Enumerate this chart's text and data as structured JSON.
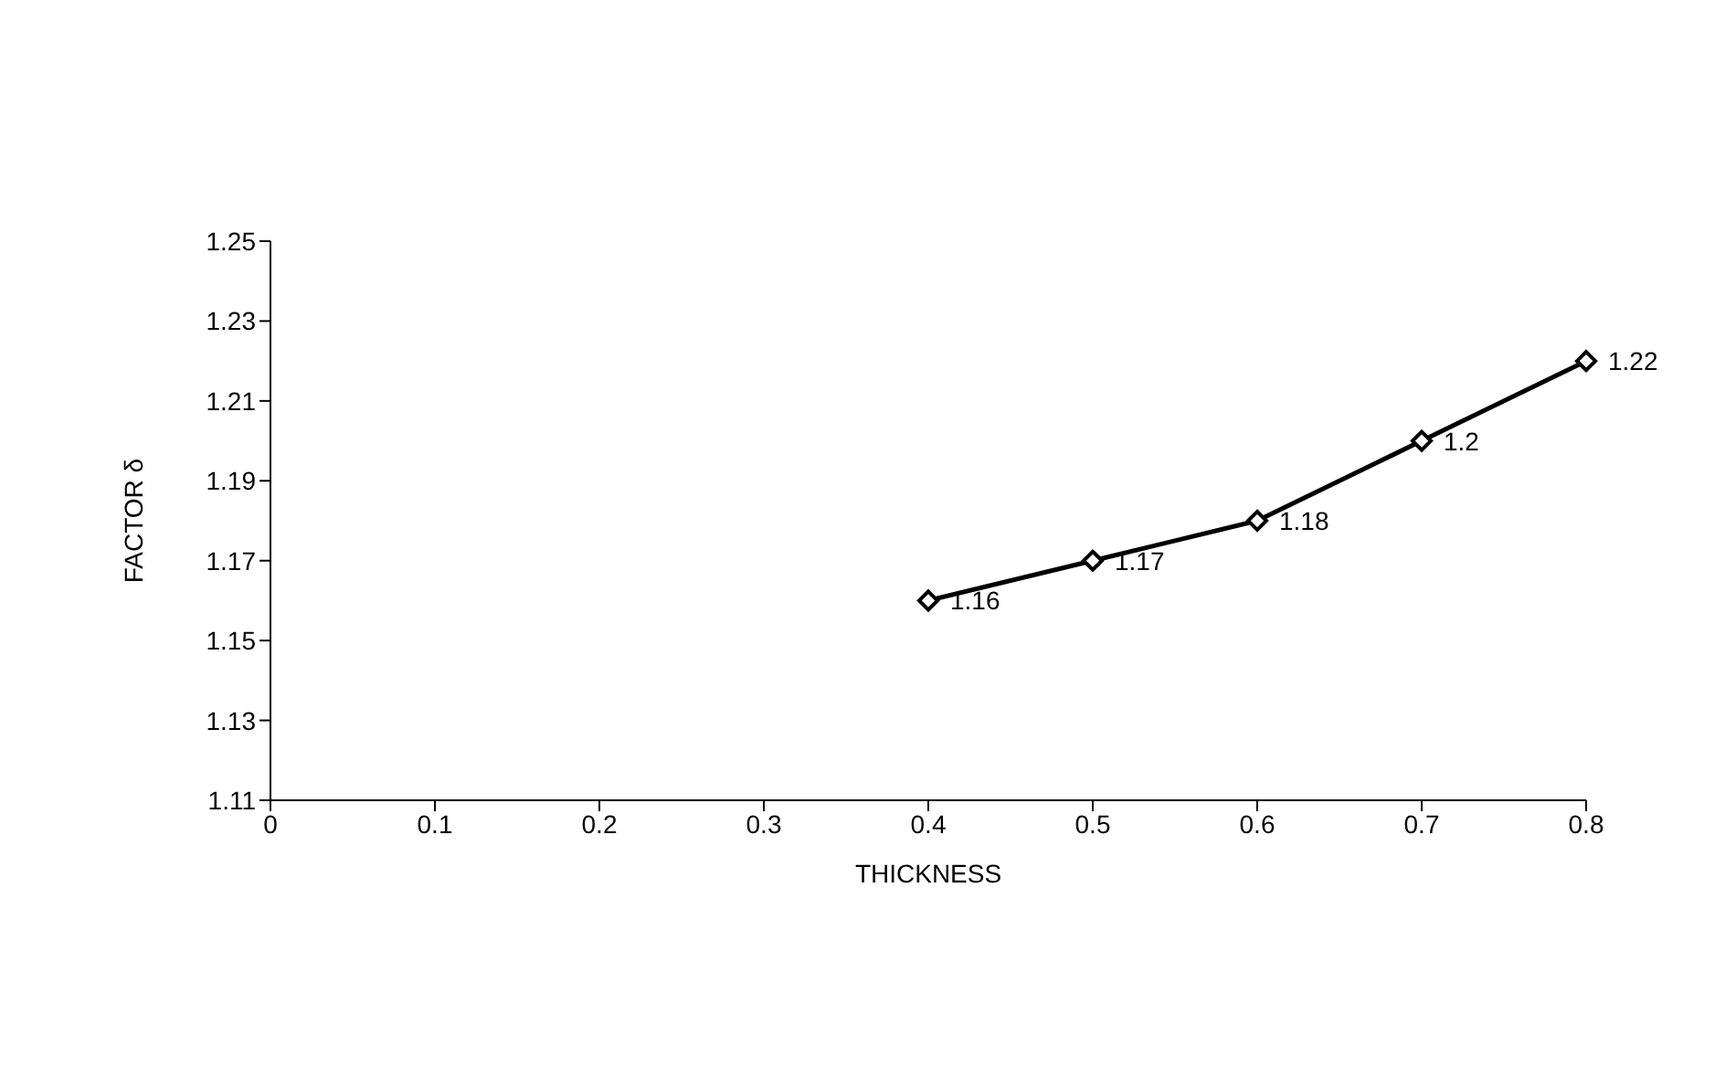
{
  "chart_data": {
    "type": "line",
    "xlabel": "THICKNESS",
    "ylabel": "FACTOR δ",
    "x": [
      0.4,
      0.5,
      0.6,
      0.7,
      0.8
    ],
    "series": [
      {
        "color": "#000000",
        "values": [
          1.16,
          1.17,
          1.18,
          1.2,
          1.22
        ]
      }
    ],
    "xlim": [
      0,
      0.8
    ],
    "xticks": [
      0,
      0.1,
      0.2,
      0.3,
      0.4,
      0.5,
      0.6,
      0.7,
      0.8
    ],
    "ylim": [
      1.11,
      1.25
    ],
    "yticks": [
      1.11,
      1.13,
      1.15,
      1.17,
      1.19,
      1.21,
      1.23,
      1.25
    ],
    "marker": "diamond",
    "line_style": "solid",
    "data_labels": true,
    "grid": false,
    "legend": false
  }
}
